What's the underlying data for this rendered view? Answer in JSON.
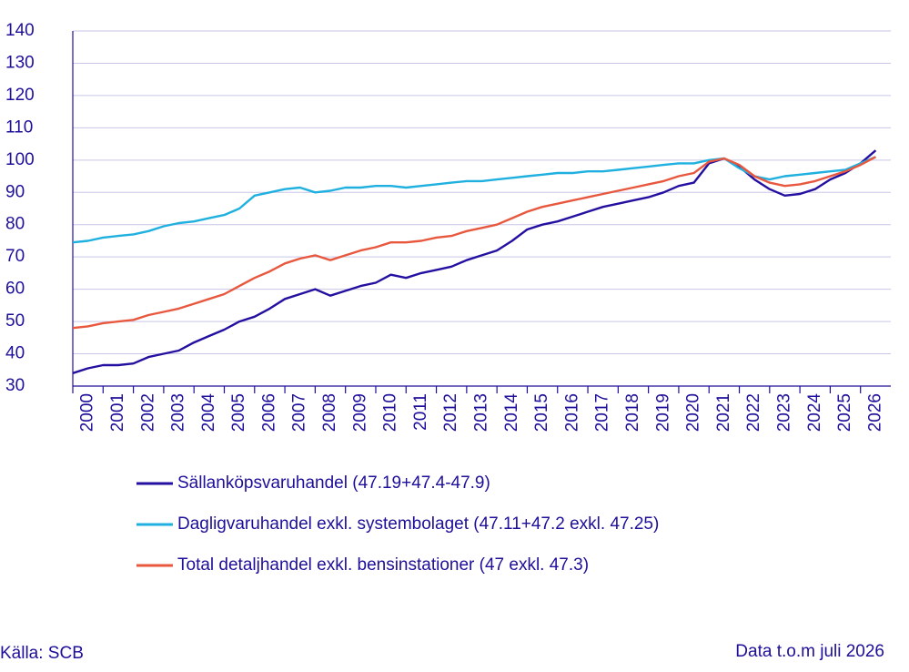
{
  "chart_data": {
    "type": "line",
    "x": [
      2000,
      2000.5,
      2001,
      2001.5,
      2002,
      2002.5,
      2003,
      2003.5,
      2004,
      2004.5,
      2005,
      2005.5,
      2006,
      2006.5,
      2007,
      2007.5,
      2008,
      2008.5,
      2009,
      2009.5,
      2010,
      2010.5,
      2011,
      2011.5,
      2012,
      2012.5,
      2013,
      2013.5,
      2014,
      2014.5,
      2015,
      2015.5,
      2016,
      2016.5,
      2017,
      2017.5,
      2018,
      2018.5,
      2019,
      2019.5,
      2020,
      2020.5,
      2021,
      2021.5,
      2022,
      2022.5,
      2023,
      2023.5,
      2024,
      2024.5,
      2025,
      2025.5,
      2026,
      2026.5
    ],
    "series": [
      {
        "name": "Sällanköpsvaruhandel (47.19+47.4-47.9)",
        "color": "#2410a0",
        "values": [
          34,
          35.5,
          36.5,
          36.5,
          37,
          39,
          40,
          41,
          43.5,
          45.5,
          47.5,
          50,
          51.5,
          54,
          57,
          58.5,
          60,
          58,
          59.5,
          61,
          62,
          64.5,
          63.5,
          65,
          66,
          67,
          69,
          70.5,
          72,
          75,
          78.5,
          80,
          81,
          82.5,
          84,
          85.5,
          86.5,
          87.5,
          88.5,
          90,
          92,
          93,
          99,
          100.5,
          98,
          94,
          91,
          89,
          89.5,
          91,
          94,
          96,
          99,
          103
        ]
      },
      {
        "name": "Dagligvaruhandel exkl. systembolaget (47.11+47.2 exkl. 47.25)",
        "color": "#1fb0e0",
        "values": [
          74.5,
          75,
          76,
          76.5,
          77,
          78,
          79.5,
          80.5,
          81,
          82,
          83,
          85,
          89,
          90,
          91,
          91.5,
          90,
          90.5,
          91.5,
          91.5,
          92,
          92,
          91.5,
          92,
          92.5,
          93,
          93.5,
          93.5,
          94,
          94.5,
          95,
          95.5,
          96,
          96,
          96.5,
          96.5,
          97,
          97.5,
          98,
          98.5,
          99,
          99,
          100,
          100.5,
          97.5,
          95,
          94,
          95,
          95.5,
          96,
          96.5,
          97,
          99,
          101
        ]
      },
      {
        "name": "Total detaljhandel exkl. bensinstationer (47 exkl. 47.3)",
        "color": "#e8583f",
        "values": [
          48,
          48.5,
          49.5,
          50,
          50.5,
          52,
          53,
          54,
          55.5,
          57,
          58.5,
          61,
          63.5,
          65.5,
          68,
          69.5,
          70.5,
          69,
          70.5,
          72,
          73,
          74.5,
          74.5,
          75,
          76,
          76.5,
          78,
          79,
          80,
          82,
          84,
          85.5,
          86.5,
          87.5,
          88.5,
          89.5,
          90.5,
          91.5,
          92.5,
          93.5,
          95,
          96,
          99.5,
          100.5,
          98.5,
          95,
          93,
          92,
          92.5,
          93.5,
          95,
          96.5,
          98.5,
          101
        ]
      }
    ],
    "xlim": [
      2000,
      2027
    ],
    "xticks": [
      2000,
      2001,
      2002,
      2003,
      2004,
      2005,
      2006,
      2007,
      2008,
      2009,
      2010,
      2011,
      2012,
      2013,
      2014,
      2015,
      2016,
      2017,
      2018,
      2019,
      2020,
      2021,
      2022,
      2023,
      2024,
      2025,
      2026
    ],
    "ylim": [
      30,
      140
    ],
    "yticks": [
      30,
      40,
      50,
      60,
      70,
      80,
      90,
      100,
      110,
      120,
      130,
      140
    ],
    "grid": true,
    "source": "Källa: SCB",
    "note": "Data t.o.m juli 2026"
  }
}
